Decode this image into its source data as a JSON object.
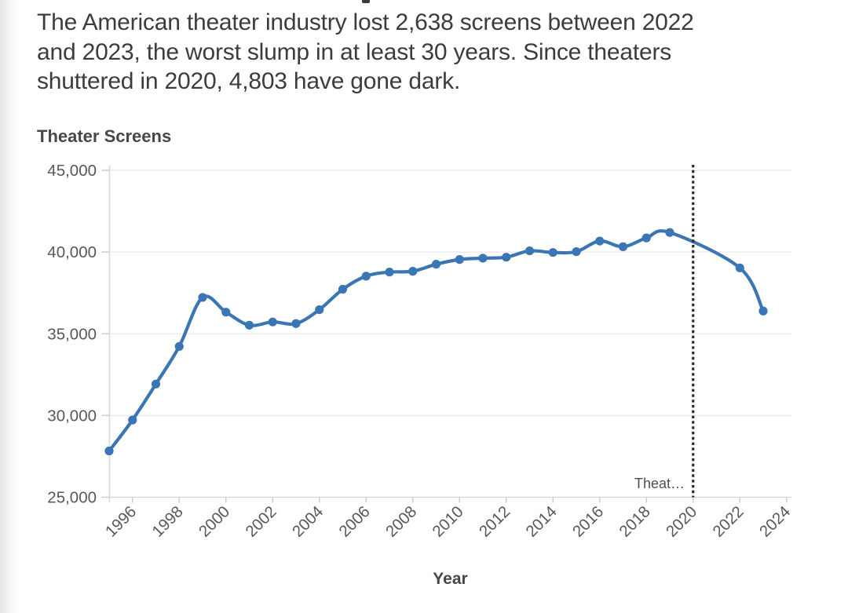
{
  "subtitle": {
    "lines": [
      "The American theater industry lost 2,638 screens between 2022",
      "and 2023, the worst slump in at least 30 years. Since theaters",
      "shuttered in 2020, 4,803 have gone dark."
    ]
  },
  "chart_data": {
    "type": "line",
    "title": "Theater Screens",
    "xlabel": "Year",
    "ylabel": "",
    "grid": true,
    "legend_position": "none",
    "xlim": [
      1995,
      2024
    ],
    "ylim": [
      25000,
      45000
    ],
    "series": [
      {
        "name": "Theater Screens",
        "x": [
          1995,
          1996,
          1997,
          1998,
          1999,
          2000,
          2001,
          2002,
          2003,
          2004,
          2005,
          2006,
          2007,
          2008,
          2009,
          2010,
          2011,
          2012,
          2013,
          2014,
          2015,
          2016,
          2017,
          2018,
          2019,
          2022,
          2023
        ],
        "values": [
          27805,
          29700,
          31900,
          34200,
          37200,
          36300,
          35500,
          35700,
          35600,
          36450,
          37700,
          38500,
          38750,
          38800,
          39230,
          39520,
          39600,
          39660,
          40050,
          39950,
          40000,
          40650,
          40300,
          40840,
          41172,
          39007,
          36369
        ]
      }
    ],
    "xticks": [
      1996,
      1998,
      2000,
      2002,
      2004,
      2006,
      2008,
      2010,
      2012,
      2014,
      2016,
      2018,
      2020,
      2022,
      2024
    ],
    "xtick_labels": [
      "1996",
      "1998",
      "2000",
      "2002",
      "2004",
      "2006",
      "2008",
      "2010",
      "2012",
      "2014",
      "2016",
      "2018",
      "2020",
      "2022",
      "2024"
    ],
    "yticks": [
      25000,
      30000,
      35000,
      40000,
      45000
    ],
    "ytick_labels": [
      "25,000",
      "30,000",
      "35,000",
      "40,000",
      "45,000"
    ],
    "line_color": "#3b76b4",
    "marker_color": "#3b76b4",
    "vline": {
      "x": 2020,
      "style": "dotted",
      "color": "#2b2b2b",
      "label": "Theat…"
    }
  }
}
